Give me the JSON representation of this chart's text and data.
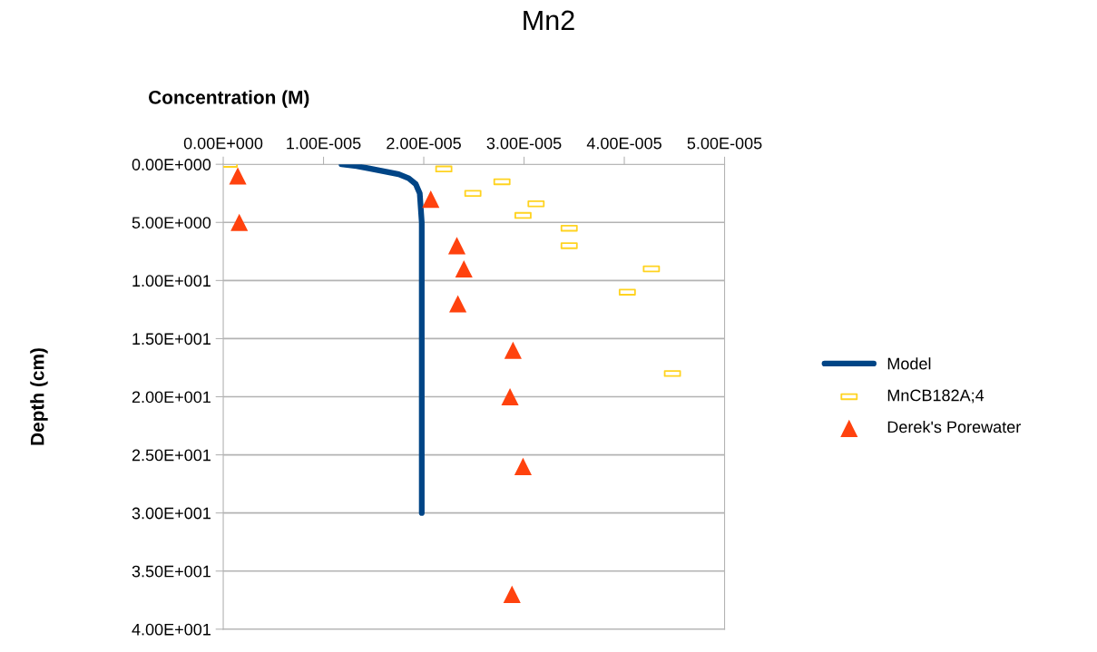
{
  "chart_data": {
    "type": "line",
    "title": "Mn2",
    "xlabel": "Concentration (M)",
    "ylabel": "Depth (cm)",
    "xlim": [
      0,
      5e-05
    ],
    "xticks": [
      {
        "value": 0,
        "label": "0.00E+000"
      },
      {
        "value": 1e-05,
        "label": "1.00E-005"
      },
      {
        "value": 2e-05,
        "label": "2.00E-005"
      },
      {
        "value": 3e-05,
        "label": "3.00E-005"
      },
      {
        "value": 4e-05,
        "label": "4.00E-005"
      },
      {
        "value": 5e-05,
        "label": "5.00E-005"
      }
    ],
    "ylim": [
      40,
      0
    ],
    "yticks": [
      {
        "value": 0,
        "label": "0.00E+000"
      },
      {
        "value": 5,
        "label": "5.00E+000"
      },
      {
        "value": 10,
        "label": "1.00E+001"
      },
      {
        "value": 15,
        "label": "1.50E+001"
      },
      {
        "value": 20,
        "label": "2.00E+001"
      },
      {
        "value": 25,
        "label": "2.50E+001"
      },
      {
        "value": 30,
        "label": "3.00E+001"
      },
      {
        "value": 35,
        "label": "3.50E+001"
      },
      {
        "value": 40,
        "label": "4.00E+001"
      }
    ],
    "grid": "y",
    "legend": "right",
    "series": [
      {
        "name": "Model",
        "color": "#004586",
        "marker": "none",
        "x": [
          1.18e-05,
          1.33e-05,
          1.45e-05,
          1.6e-05,
          1.75e-05,
          1.85e-05,
          1.92e-05,
          1.96e-05,
          1.98e-05,
          1.98e-05
        ],
        "values": [
          0,
          0.15,
          0.35,
          0.6,
          0.85,
          1.2,
          1.7,
          2.5,
          5,
          30
        ]
      },
      {
        "name": "MnCB182A;4",
        "type": "scatter",
        "color": "#ffd320",
        "marker": "square",
        "x": [
          6e-07,
          2.2e-05,
          2.78e-05,
          2.49e-05,
          3.12e-05,
          2.99e-05,
          3.45e-05,
          3.45e-05,
          4.27e-05,
          4.03e-05,
          4.48e-05
        ],
        "values": [
          0,
          0.4,
          1.5,
          2.5,
          3.4,
          4.4,
          5.5,
          7.0,
          9.0,
          11.0,
          18.0
        ]
      },
      {
        "name": "Derek's Porewater",
        "type": "scatter",
        "color": "#ff420e",
        "marker": "triangle",
        "x": [
          1.45e-06,
          2.07e-05,
          1.6e-06,
          2.33e-05,
          2.4e-05,
          2.34e-05,
          2.89e-05,
          2.86e-05,
          2.99e-05,
          2.88e-05
        ],
        "values": [
          1,
          3,
          5,
          7,
          9,
          12,
          16,
          20,
          26,
          37
        ]
      }
    ]
  }
}
